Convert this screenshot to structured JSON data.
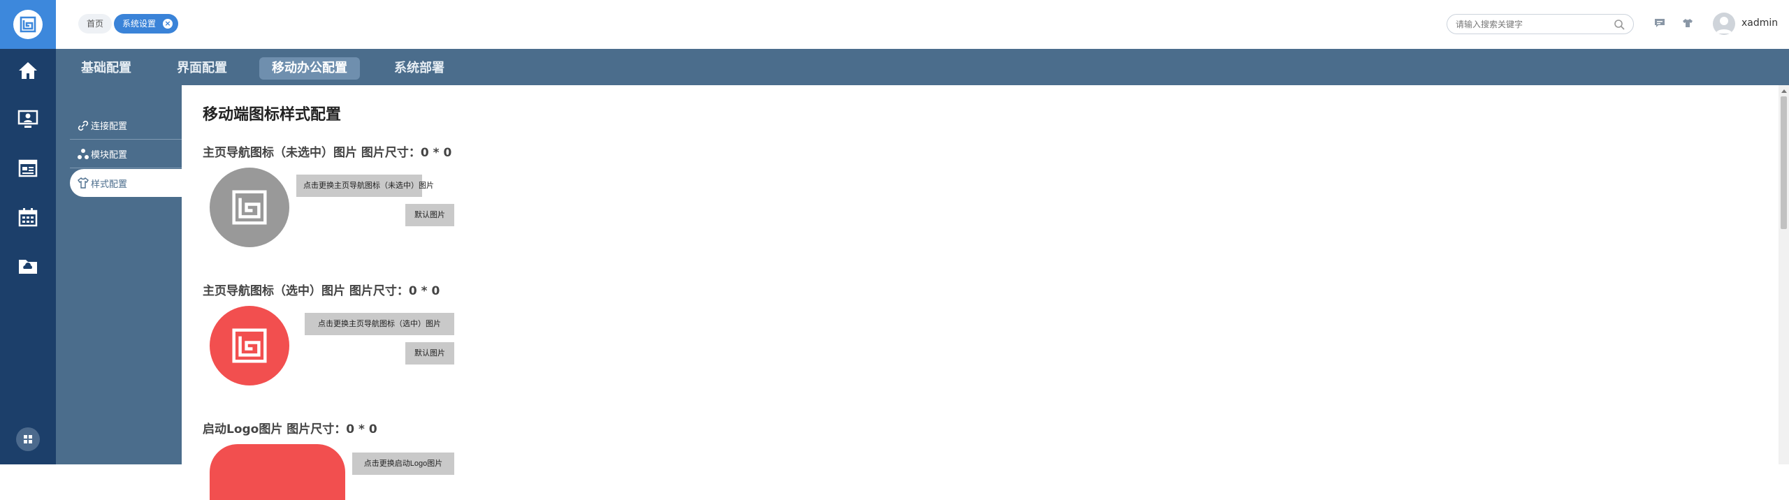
{
  "header": {
    "breadcrumbs": [
      {
        "label": "首页"
      },
      {
        "label": "系统设置"
      }
    ],
    "search_placeholder": "请输入搜索关键字",
    "username": "xadmin"
  },
  "rail": {
    "items": [
      {
        "icon": "home-icon"
      },
      {
        "icon": "monitor-user-icon"
      },
      {
        "icon": "news-icon"
      },
      {
        "icon": "calendar-icon"
      },
      {
        "icon": "folder-icon"
      }
    ]
  },
  "tabs": [
    {
      "label": "基础配置"
    },
    {
      "label": "界面配置"
    },
    {
      "label": "移动办公配置",
      "active": true
    },
    {
      "label": "系统部署"
    }
  ],
  "subnav": [
    {
      "label": "连接配置"
    },
    {
      "label": "模块配置"
    },
    {
      "label": "样式配置",
      "active": true
    }
  ],
  "content": {
    "title": "移动端图标样式配置",
    "sections": [
      {
        "title": "主页导航图标（未选中）图片 图片尺寸：0 * 0",
        "change_btn": "点击更换主页导航图标（未选中）图片",
        "default_btn": "默认图片"
      },
      {
        "title": "主页导航图标（选中）图片 图片尺寸：0 * 0",
        "change_btn": "点击更换主页导航图标（选中）图片",
        "default_btn": "默认图片"
      },
      {
        "title": "启动Logo图片 图片尺寸：0 * 0",
        "change_btn": "点击更换启动Logo图片"
      }
    ]
  },
  "colors": {
    "rail": "#1c3f6a",
    "accent": "#3a83d8",
    "tabbar": "#4b6d8c",
    "preview_gray": "#999999",
    "preview_red": "#f24f4f"
  }
}
